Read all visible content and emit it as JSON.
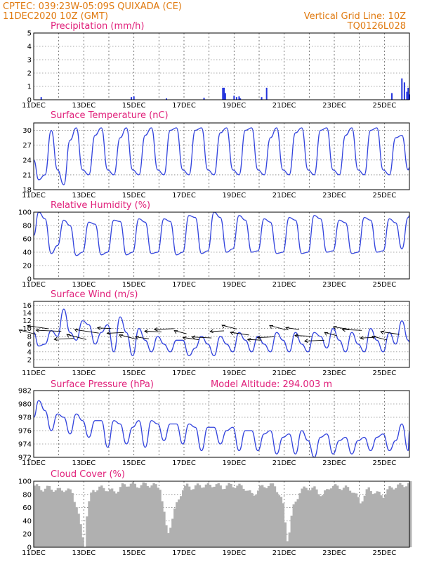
{
  "header": {
    "line1": "CPTEC:   039:23W-05:09S   QUIXADA (CE)",
    "line2": "11DEC2020  10Z (GMT)",
    "right1": "Vertical Grid Line: 10Z",
    "right2": "TQ0126L028",
    "color": "#e07a10"
  },
  "x_tick_labels": [
    "11DEC",
    "13DEC",
    "15DEC",
    "17DEC",
    "19DEC",
    "21DEC",
    "23DEC",
    "25DEC"
  ],
  "colors": {
    "series": "#3344dd",
    "title": "#e0207a",
    "cloud": "#b0b0b0"
  },
  "chart_data": [
    {
      "id": "precipitation",
      "type": "bar",
      "title": "Precipitation (mm/h)",
      "ylim": [
        0,
        5
      ],
      "yticks": [
        0,
        1,
        2,
        3,
        4,
        5
      ],
      "x_unit": "days since 11DEC 10Z",
      "x": [
        0.3,
        3.9,
        4.0,
        5.3,
        6.8,
        7.55,
        7.6,
        7.65,
        8.0,
        8.1,
        8.2,
        8.25,
        9.1,
        9.3,
        14.3,
        14.7,
        14.8,
        14.9,
        14.95,
        15.0
      ],
      "values": [
        0.2,
        0.2,
        0.25,
        0.1,
        0.15,
        0.9,
        0.9,
        0.5,
        0.3,
        0.2,
        0.25,
        0.1,
        0.2,
        0.9,
        0.5,
        1.6,
        1.3,
        0.6,
        0.9,
        0.4
      ]
    },
    {
      "id": "temperature",
      "type": "line",
      "title": "Surface Temperature (nC)",
      "ylim": [
        18,
        31.5
      ],
      "yticks": [
        18,
        21,
        24,
        27,
        30
      ],
      "x_unit": "days since 11DEC 10Z",
      "x": [
        0,
        0.2,
        0.45,
        0.7,
        0.95,
        1.2,
        1.45,
        1.7,
        1.95,
        2.2,
        2.45,
        2.7,
        2.95,
        3.2,
        3.45,
        3.7,
        3.95,
        4.2,
        4.45,
        4.7,
        4.95,
        5.2,
        5.45,
        5.7,
        5.95,
        6.2,
        6.45,
        6.7,
        6.95,
        7.2,
        7.45,
        7.7,
        7.95,
        8.2,
        8.45,
        8.7,
        8.95,
        9.2,
        9.45,
        9.7,
        9.95,
        10.2,
        10.45,
        10.7,
        10.95,
        11.2,
        11.45,
        11.7,
        11.95,
        12.2,
        12.45,
        12.7,
        12.95,
        13.2,
        13.45,
        13.7,
        13.95,
        14.2,
        14.45,
        14.7,
        14.95,
        15.0
      ],
      "values": [
        24,
        20,
        21,
        30,
        22,
        19,
        28,
        30.5,
        22,
        21,
        29,
        30.5,
        22,
        21,
        28.5,
        30.5,
        22,
        21,
        29,
        30.5,
        22,
        21,
        30,
        30.5,
        22,
        21,
        30,
        30.5,
        22,
        21,
        29.5,
        30.5,
        22,
        21,
        30,
        30.5,
        22,
        21,
        28.5,
        30.5,
        22,
        21,
        29.5,
        30.5,
        22,
        21,
        30,
        30.5,
        22,
        21,
        29,
        30.5,
        22,
        21,
        30,
        30.5,
        22,
        21,
        28.5,
        29,
        22,
        22.5
      ]
    },
    {
      "id": "humidity",
      "type": "line",
      "title": "Relative Humidity (%)",
      "ylim": [
        0,
        100
      ],
      "yticks": [
        0,
        20,
        40,
        60,
        80,
        100
      ],
      "x_unit": "days since 11DEC 10Z",
      "x": [
        0,
        0.2,
        0.45,
        0.7,
        0.95,
        1.2,
        1.45,
        1.7,
        1.95,
        2.2,
        2.45,
        2.7,
        2.95,
        3.2,
        3.45,
        3.7,
        3.95,
        4.2,
        4.45,
        4.7,
        4.95,
        5.2,
        5.45,
        5.7,
        5.95,
        6.2,
        6.45,
        6.7,
        6.95,
        7.2,
        7.45,
        7.7,
        7.95,
        8.2,
        8.45,
        8.7,
        8.95,
        9.2,
        9.45,
        9.7,
        9.95,
        10.2,
        10.45,
        10.7,
        10.95,
        11.2,
        11.45,
        11.7,
        11.95,
        12.2,
        12.45,
        12.7,
        12.95,
        13.2,
        13.45,
        13.7,
        13.95,
        14.2,
        14.45,
        14.7,
        14.95,
        15.0
      ],
      "values": [
        65,
        100,
        90,
        38,
        50,
        88,
        80,
        35,
        40,
        85,
        82,
        36,
        40,
        88,
        86,
        36,
        40,
        90,
        85,
        38,
        40,
        90,
        86,
        36,
        40,
        95,
        92,
        38,
        42,
        100,
        92,
        40,
        45,
        95,
        88,
        40,
        42,
        90,
        85,
        38,
        40,
        92,
        88,
        38,
        40,
        95,
        90,
        40,
        42,
        88,
        84,
        38,
        40,
        92,
        88,
        40,
        42,
        90,
        84,
        45,
        92,
        95
      ]
    },
    {
      "id": "wind",
      "type": "line",
      "title": "Surface Wind (m/s)",
      "ylim": [
        0,
        17
      ],
      "yticks": [
        2,
        4,
        6,
        8,
        10,
        12,
        14,
        16
      ],
      "x_unit": "days since 11DEC 10Z",
      "x": [
        0,
        0.2,
        0.45,
        0.7,
        0.95,
        1.2,
        1.45,
        1.7,
        1.95,
        2.2,
        2.45,
        2.7,
        2.95,
        3.2,
        3.45,
        3.7,
        3.95,
        4.2,
        4.45,
        4.7,
        4.95,
        5.2,
        5.45,
        5.7,
        5.95,
        6.2,
        6.45,
        6.7,
        6.95,
        7.2,
        7.45,
        7.7,
        7.95,
        8.2,
        8.45,
        8.7,
        8.95,
        9.2,
        9.45,
        9.7,
        9.95,
        10.2,
        10.45,
        10.7,
        10.95,
        11.2,
        11.45,
        11.7,
        11.95,
        12.2,
        12.45,
        12.7,
        12.95,
        13.2,
        13.45,
        13.7,
        13.95,
        14.2,
        14.45,
        14.7,
        14.95,
        15.0
      ],
      "values": [
        9,
        5.5,
        6,
        9.5,
        8,
        15,
        9,
        7,
        12,
        11,
        6,
        9,
        11,
        4,
        13,
        9,
        3,
        10,
        7,
        4,
        8,
        6,
        4,
        7,
        7,
        3,
        5,
        8,
        6,
        3,
        8,
        6,
        4,
        9,
        7,
        4,
        8,
        6,
        4,
        9,
        7,
        4,
        9,
        6,
        4,
        9,
        8,
        5,
        10,
        7,
        4,
        9,
        6,
        4,
        10,
        7,
        4,
        9,
        6,
        12,
        7,
        6.5
      ]
    },
    {
      "id": "pressure",
      "type": "line",
      "title": "Surface Pressure (hPa)",
      "subtitle": "Model Altitude: 294.003 m",
      "ylim": [
        972,
        982
      ],
      "yticks": [
        972,
        974,
        976,
        978,
        980,
        982
      ],
      "x_unit": "days since 11DEC 10Z",
      "x": [
        0,
        0.2,
        0.45,
        0.7,
        0.95,
        1.2,
        1.45,
        1.7,
        1.95,
        2.2,
        2.45,
        2.7,
        2.95,
        3.2,
        3.45,
        3.7,
        3.95,
        4.2,
        4.45,
        4.7,
        4.95,
        5.2,
        5.45,
        5.7,
        5.95,
        6.2,
        6.45,
        6.7,
        6.95,
        7.2,
        7.45,
        7.7,
        7.95,
        8.2,
        8.45,
        8.7,
        8.95,
        9.2,
        9.45,
        9.7,
        9.95,
        10.2,
        10.45,
        10.7,
        10.95,
        11.2,
        11.45,
        11.7,
        11.95,
        12.2,
        12.45,
        12.7,
        12.95,
        13.2,
        13.45,
        13.7,
        13.95,
        14.2,
        14.45,
        14.7,
        14.95,
        15.0
      ],
      "values": [
        978,
        980.5,
        979,
        976,
        978.5,
        978,
        975.5,
        978.5,
        977.5,
        975,
        977.5,
        977.5,
        973.5,
        977.5,
        977,
        974,
        976.5,
        977.5,
        973.5,
        977.5,
        977,
        974.5,
        977,
        977,
        974,
        977,
        976.5,
        973,
        976.5,
        976.5,
        974,
        976,
        976.5,
        973,
        976,
        976,
        973,
        975.5,
        976,
        972.5,
        975,
        975.5,
        972.5,
        976,
        974.5,
        972,
        975,
        975.5,
        972.5,
        974.5,
        975,
        972.5,
        974.5,
        975,
        973,
        975,
        975.5,
        973,
        974.5,
        977,
        973,
        976
      ]
    },
    {
      "id": "cloud",
      "type": "area",
      "title": "Cloud Cover (%)",
      "ylim": [
        0,
        100
      ],
      "yticks": [
        0,
        20,
        40,
        60,
        80,
        100
      ],
      "x_unit": "days since 11DEC 10Z",
      "x": [
        0,
        0.3,
        0.6,
        0.9,
        1.2,
        1.5,
        1.7,
        1.9,
        2.0,
        2.1,
        2.3,
        2.6,
        2.9,
        3.2,
        3.5,
        3.8,
        4.1,
        4.4,
        4.7,
        5.0,
        5.3,
        5.6,
        5.9,
        6.1,
        6.3,
        6.6,
        6.9,
        7.2,
        7.5,
        7.8,
        8.1,
        8.4,
        8.7,
        9.0,
        9.3,
        9.6,
        9.9,
        10.1,
        10.3,
        10.6,
        10.9,
        11.2,
        11.5,
        11.8,
        12.1,
        12.4,
        12.7,
        13.0,
        13.3,
        13.6,
        13.9,
        14.2,
        14.5,
        14.8,
        15.0
      ],
      "values": [
        95,
        90,
        92,
        88,
        90,
        85,
        60,
        20,
        5,
        60,
        88,
        92,
        90,
        85,
        95,
        98,
        95,
        97,
        96,
        93,
        20,
        60,
        90,
        95,
        92,
        96,
        95,
        97,
        93,
        96,
        95,
        92,
        80,
        92,
        96,
        95,
        70,
        10,
        60,
        88,
        92,
        90,
        80,
        95,
        93,
        92,
        88,
        70,
        90,
        85,
        80,
        92,
        95,
        97,
        98
      ]
    }
  ]
}
